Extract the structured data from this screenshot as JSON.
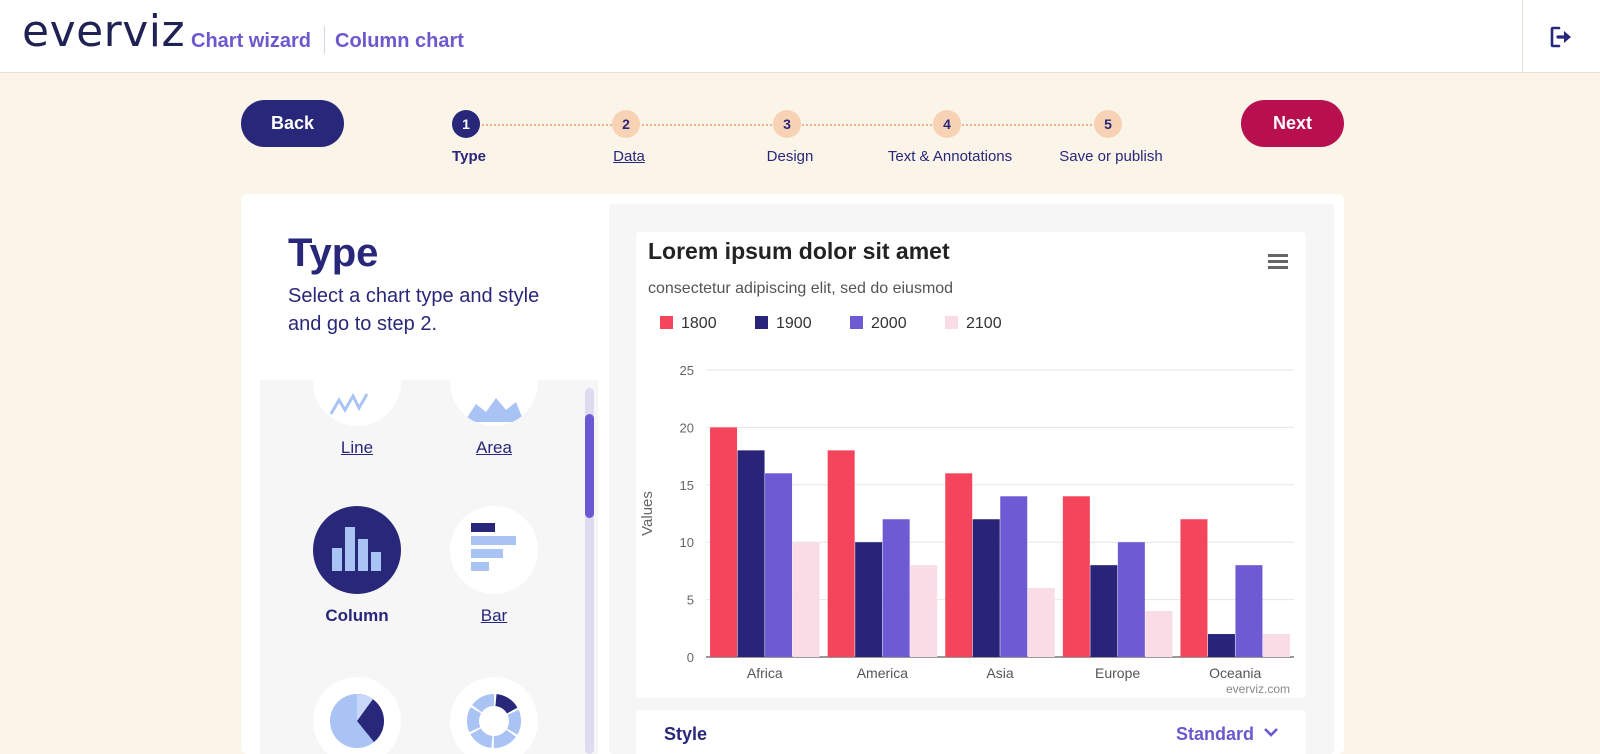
{
  "header": {
    "logo": "everviz",
    "breadcrumb": [
      "Chart wizard",
      "Column chart"
    ],
    "logout_icon": "logout-icon"
  },
  "nav": {
    "back_label": "Back",
    "next_label": "Next",
    "steps": [
      {
        "number": "1",
        "label": "Type",
        "state": "active"
      },
      {
        "number": "2",
        "label": "Data",
        "state": "link"
      },
      {
        "number": "3",
        "label": "Design",
        "state": "todo"
      },
      {
        "number": "4",
        "label": "Text & Annotations",
        "state": "todo"
      },
      {
        "number": "5",
        "label": "Save or publish",
        "state": "todo"
      }
    ]
  },
  "left": {
    "title": "Type",
    "description": "Select a chart type and style and go to step 2.",
    "chart_types": [
      {
        "label": "Line",
        "icon": "line-chart-icon",
        "selected": false
      },
      {
        "label": "Area",
        "icon": "area-chart-icon",
        "selected": false
      },
      {
        "label": "Column",
        "icon": "column-chart-icon",
        "selected": true
      },
      {
        "label": "Bar",
        "icon": "bar-chart-icon",
        "selected": false
      },
      {
        "label": "",
        "icon": "pie-chart-icon",
        "selected": false
      },
      {
        "label": "",
        "icon": "donut-chart-icon",
        "selected": false
      }
    ]
  },
  "preview": {
    "menu_icon": "hamburger-menu-icon",
    "credit": "everviz.com",
    "style_label": "Style",
    "style_value": "Standard"
  },
  "chart_data": {
    "type": "bar",
    "title": "Lorem ipsum dolor sit amet",
    "subtitle": "consectetur adipiscing elit, sed do eiusmod",
    "xlabel": "",
    "ylabel": "Values",
    "ylim": [
      0,
      25
    ],
    "yticks": [
      0,
      5,
      10,
      15,
      20,
      25
    ],
    "grid": true,
    "legend_position": "top-left",
    "categories": [
      "Africa",
      "America",
      "Asia",
      "Europe",
      "Oceania"
    ],
    "series": [
      {
        "name": "1800",
        "color": "#f5455c",
        "values": [
          20,
          18,
          16,
          14,
          12
        ]
      },
      {
        "name": "1900",
        "color": "#28247a",
        "values": [
          18,
          10,
          12,
          8,
          2
        ]
      },
      {
        "name": "2000",
        "color": "#6e5ad3",
        "values": [
          16,
          12,
          14,
          10,
          8
        ]
      },
      {
        "name": "2100",
        "color": "#f9dce5",
        "values": [
          10,
          8,
          6,
          4,
          2
        ]
      }
    ]
  }
}
